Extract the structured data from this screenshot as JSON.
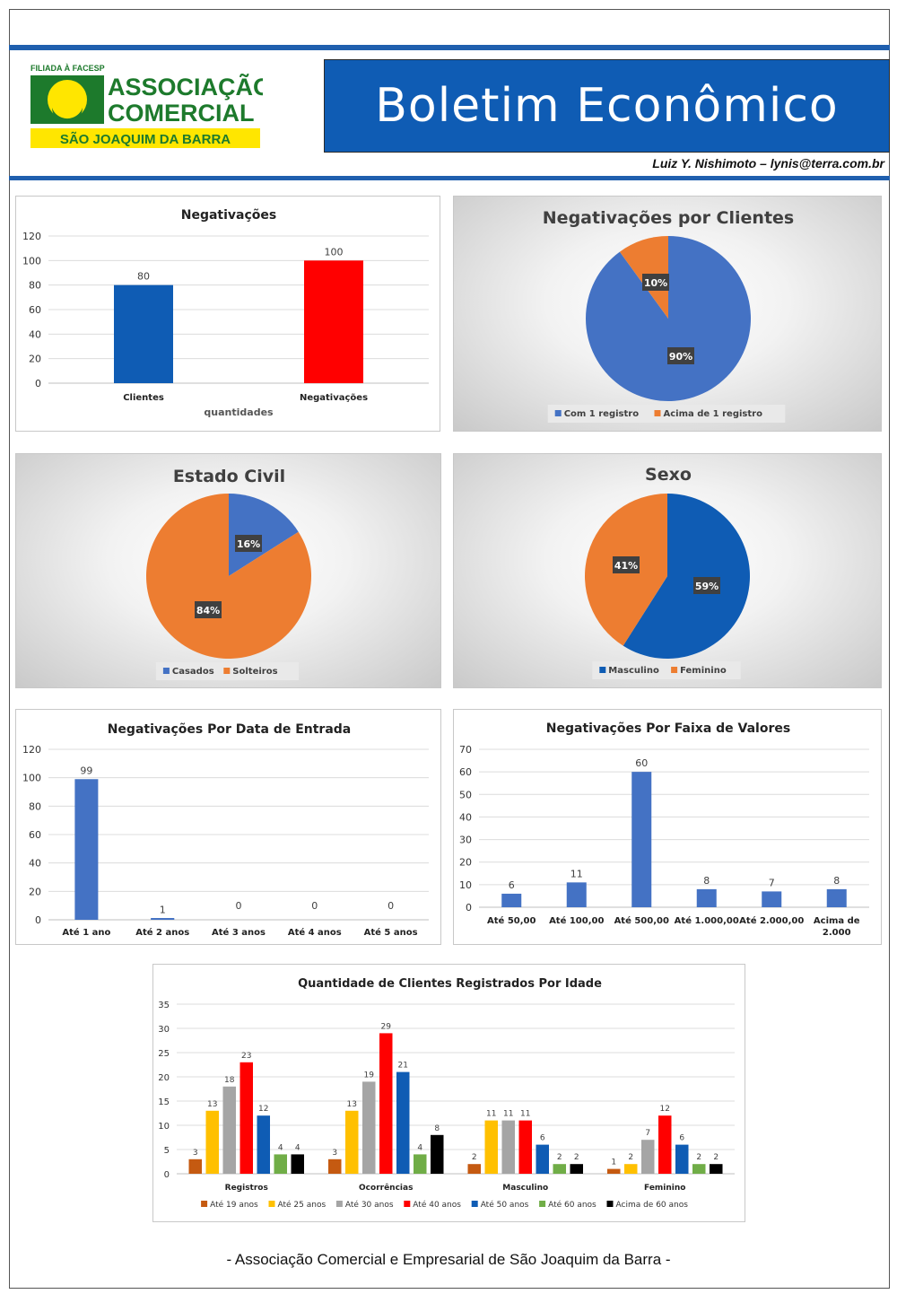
{
  "header": {
    "logo_top": "FILIADA À FACESP",
    "logo_line1": "ASSOCIAÇÃO",
    "logo_line2": "COMERCIAL",
    "logo_line3": "SÃO JOAQUIM DA BARRA",
    "title": "Boletim Econômico",
    "author": "Luiz Y. Nishimoto – lynis@terra.com.br"
  },
  "footer": "- Associação Comercial e Empresarial de São Joaquim da Barra -",
  "colors": {
    "blue": "#0f5cb4",
    "red": "#ff0000",
    "pie_blue": "#4472c4",
    "pie_orange": "#ed7d31"
  },
  "chart_data": [
    {
      "id": "negativacoes",
      "type": "bar",
      "title": "Negativações",
      "xlabel": "quantidades",
      "categories": [
        "Clientes",
        "Negativações"
      ],
      "values": [
        80,
        100
      ],
      "colors": [
        "#0f5cb4",
        "#ff0000"
      ],
      "ylim": [
        0,
        120
      ],
      "yticks": [
        0,
        20,
        40,
        60,
        80,
        100,
        120
      ],
      "grid": true
    },
    {
      "id": "neg-clientes",
      "type": "pie",
      "title": "Negativações por Clientes",
      "labels": [
        "Com 1 registro",
        "Acima de 1 registro"
      ],
      "values": [
        90,
        10
      ],
      "value_labels": [
        "90%",
        "10%"
      ],
      "colors": [
        "#4472c4",
        "#ed7d31"
      ],
      "legend": "bottom"
    },
    {
      "id": "estado-civil",
      "type": "pie",
      "title": "Estado Civil",
      "labels": [
        "Casados",
        "Solteiros"
      ],
      "values": [
        16,
        84
      ],
      "value_labels": [
        "16%",
        "84%"
      ],
      "colors": [
        "#4472c4",
        "#ed7d31"
      ],
      "legend": "bottom"
    },
    {
      "id": "sexo",
      "type": "pie",
      "title": "Sexo",
      "labels": [
        "Masculino",
        "Feminino"
      ],
      "values": [
        59,
        41
      ],
      "value_labels": [
        "59%",
        "41%"
      ],
      "colors": [
        "#0f5cb4",
        "#ed7d31"
      ],
      "legend": "bottom"
    },
    {
      "id": "data-entrada",
      "type": "bar",
      "title": "Negativações Por Data de Entrada",
      "categories": [
        "Até 1 ano",
        "Até 2 anos",
        "Até 3 anos",
        "Até 4 anos",
        "Até 5 anos"
      ],
      "values": [
        99,
        1,
        0,
        0,
        0
      ],
      "colors": [
        "#4472c4"
      ],
      "ylim": [
        0,
        120
      ],
      "yticks": [
        0,
        20,
        40,
        60,
        80,
        100,
        120
      ],
      "grid": true
    },
    {
      "id": "faixa-valores",
      "type": "bar",
      "title": "Negativações Por Faixa de Valores",
      "categories": [
        "Até 50,00",
        "Até 100,00",
        "Até 500,00",
        "Até 1.000,00",
        "Até 2.000,00",
        "Acima de 2.000"
      ],
      "values": [
        6,
        11,
        60,
        8,
        7,
        8
      ],
      "colors": [
        "#4472c4"
      ],
      "ylim": [
        0,
        70
      ],
      "yticks": [
        0,
        10,
        20,
        30,
        40,
        50,
        60,
        70
      ],
      "grid": true
    },
    {
      "id": "idade",
      "type": "bar",
      "title": "Quantidade de Clientes Registrados Por Idade",
      "categories": [
        "Registros",
        "Ocorrências",
        "Masculino",
        "Feminino"
      ],
      "series": [
        {
          "name": "Até 19 anos",
          "color": "#c55a11",
          "values": [
            3,
            3,
            2,
            1
          ]
        },
        {
          "name": "Até 25 anos",
          "color": "#ffc000",
          "values": [
            13,
            13,
            11,
            2
          ]
        },
        {
          "name": "Até 30 anos",
          "color": "#a5a5a5",
          "values": [
            18,
            19,
            11,
            7
          ]
        },
        {
          "name": "Até 40 anos",
          "color": "#ff0000",
          "values": [
            23,
            29,
            11,
            12
          ]
        },
        {
          "name": "Até 50 anos",
          "color": "#0f5cb4",
          "values": [
            12,
            21,
            6,
            6
          ]
        },
        {
          "name": "Até 60 anos",
          "color": "#70ad47",
          "values": [
            4,
            4,
            2,
            2
          ]
        },
        {
          "name": "Acima de 60 anos",
          "color": "#000000",
          "values": [
            4,
            8,
            2,
            2
          ]
        }
      ],
      "ylim": [
        0,
        35
      ],
      "yticks": [
        0,
        5,
        10,
        15,
        20,
        25,
        30,
        35
      ],
      "grid": true,
      "legend": "bottom"
    }
  ]
}
